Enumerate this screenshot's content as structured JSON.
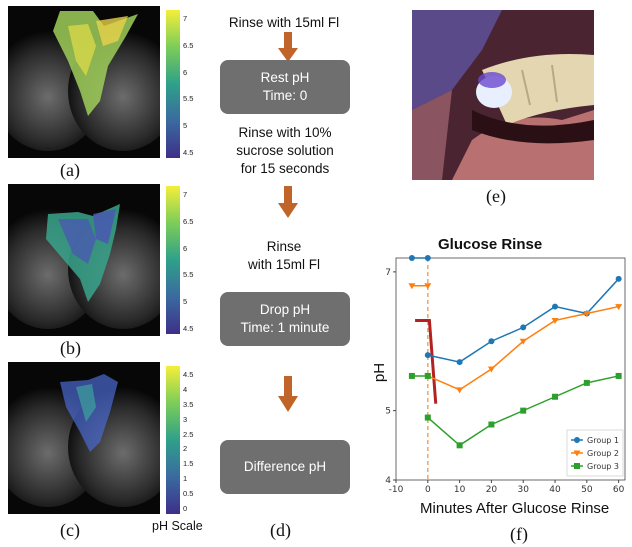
{
  "panels": {
    "a": {
      "label": "(a)",
      "colorbar_ticks": [
        "7",
        "6.5",
        "6",
        "5.5",
        "5",
        "4.5"
      ]
    },
    "b": {
      "label": "(b)",
      "colorbar_ticks": [
        "7",
        "6.5",
        "6",
        "5.5",
        "5",
        "4.5"
      ]
    },
    "c": {
      "label": "(c)",
      "colorbar_ticks": [
        "4.5",
        "4",
        "3.5",
        "3",
        "2.5",
        "2",
        "1.5",
        "1",
        "0.5",
        "0"
      ],
      "scale_label": "pH Scale"
    },
    "d": {
      "label": "(d)"
    },
    "e": {
      "label": "(e)"
    },
    "f": {
      "label": "(f)"
    }
  },
  "flow": {
    "step1": "Rinse with 15ml Fl",
    "box1_line1": "Rest pH",
    "box1_line2": "Time: 0",
    "step2_line1": "Rinse with 10%",
    "step2_line2": "sucrose solution",
    "step2_line3": "for 15 seconds",
    "step3_line1": "Rinse",
    "step3_line2": "with 15ml Fl",
    "box2_line1": "Drop pH",
    "box2_line2": "Time: 1 minute",
    "box3": "Difference pH",
    "arrow_color": "#c0642a",
    "box_color": "#6f6f6f"
  },
  "chart_data": {
    "type": "line",
    "title": "Glucose Rinse",
    "xlabel": "Minutes After Glucose Rinse",
    "ylabel": "pH",
    "xlim": [
      -10,
      62
    ],
    "ylim": [
      4,
      7.2
    ],
    "xticks": [
      "-10",
      "0",
      "10",
      "20",
      "30",
      "40",
      "50",
      "60"
    ],
    "yticks": [
      "4",
      "5",
      "7"
    ],
    "legend_position": "bottom-right",
    "x": [
      0,
      10,
      20,
      30,
      40,
      50,
      60
    ],
    "series": [
      {
        "name": "Group 1",
        "color": "#1f77b4",
        "marker": "circle",
        "values": [
          5.8,
          5.7,
          6.0,
          6.2,
          6.5,
          6.4,
          6.9
        ],
        "pre": [
          7.2,
          7.2
        ]
      },
      {
        "name": "Group 2",
        "color": "#ff7f0e",
        "marker": "triangle-down",
        "values": [
          5.5,
          5.3,
          5.6,
          6.0,
          6.3,
          6.4,
          6.5
        ],
        "pre": [
          6.8,
          6.8
        ]
      },
      {
        "name": "Group 3",
        "color": "#2ca02c",
        "marker": "square",
        "values": [
          4.9,
          4.5,
          4.8,
          5.0,
          5.2,
          5.4,
          5.5
        ],
        "pre": [
          5.5,
          5.5
        ]
      }
    ],
    "pre_x": [
      -5,
      0
    ],
    "annotations": {
      "vline_x": 0,
      "vline_color": "#f4a460",
      "drop_color": "#b22222"
    }
  }
}
